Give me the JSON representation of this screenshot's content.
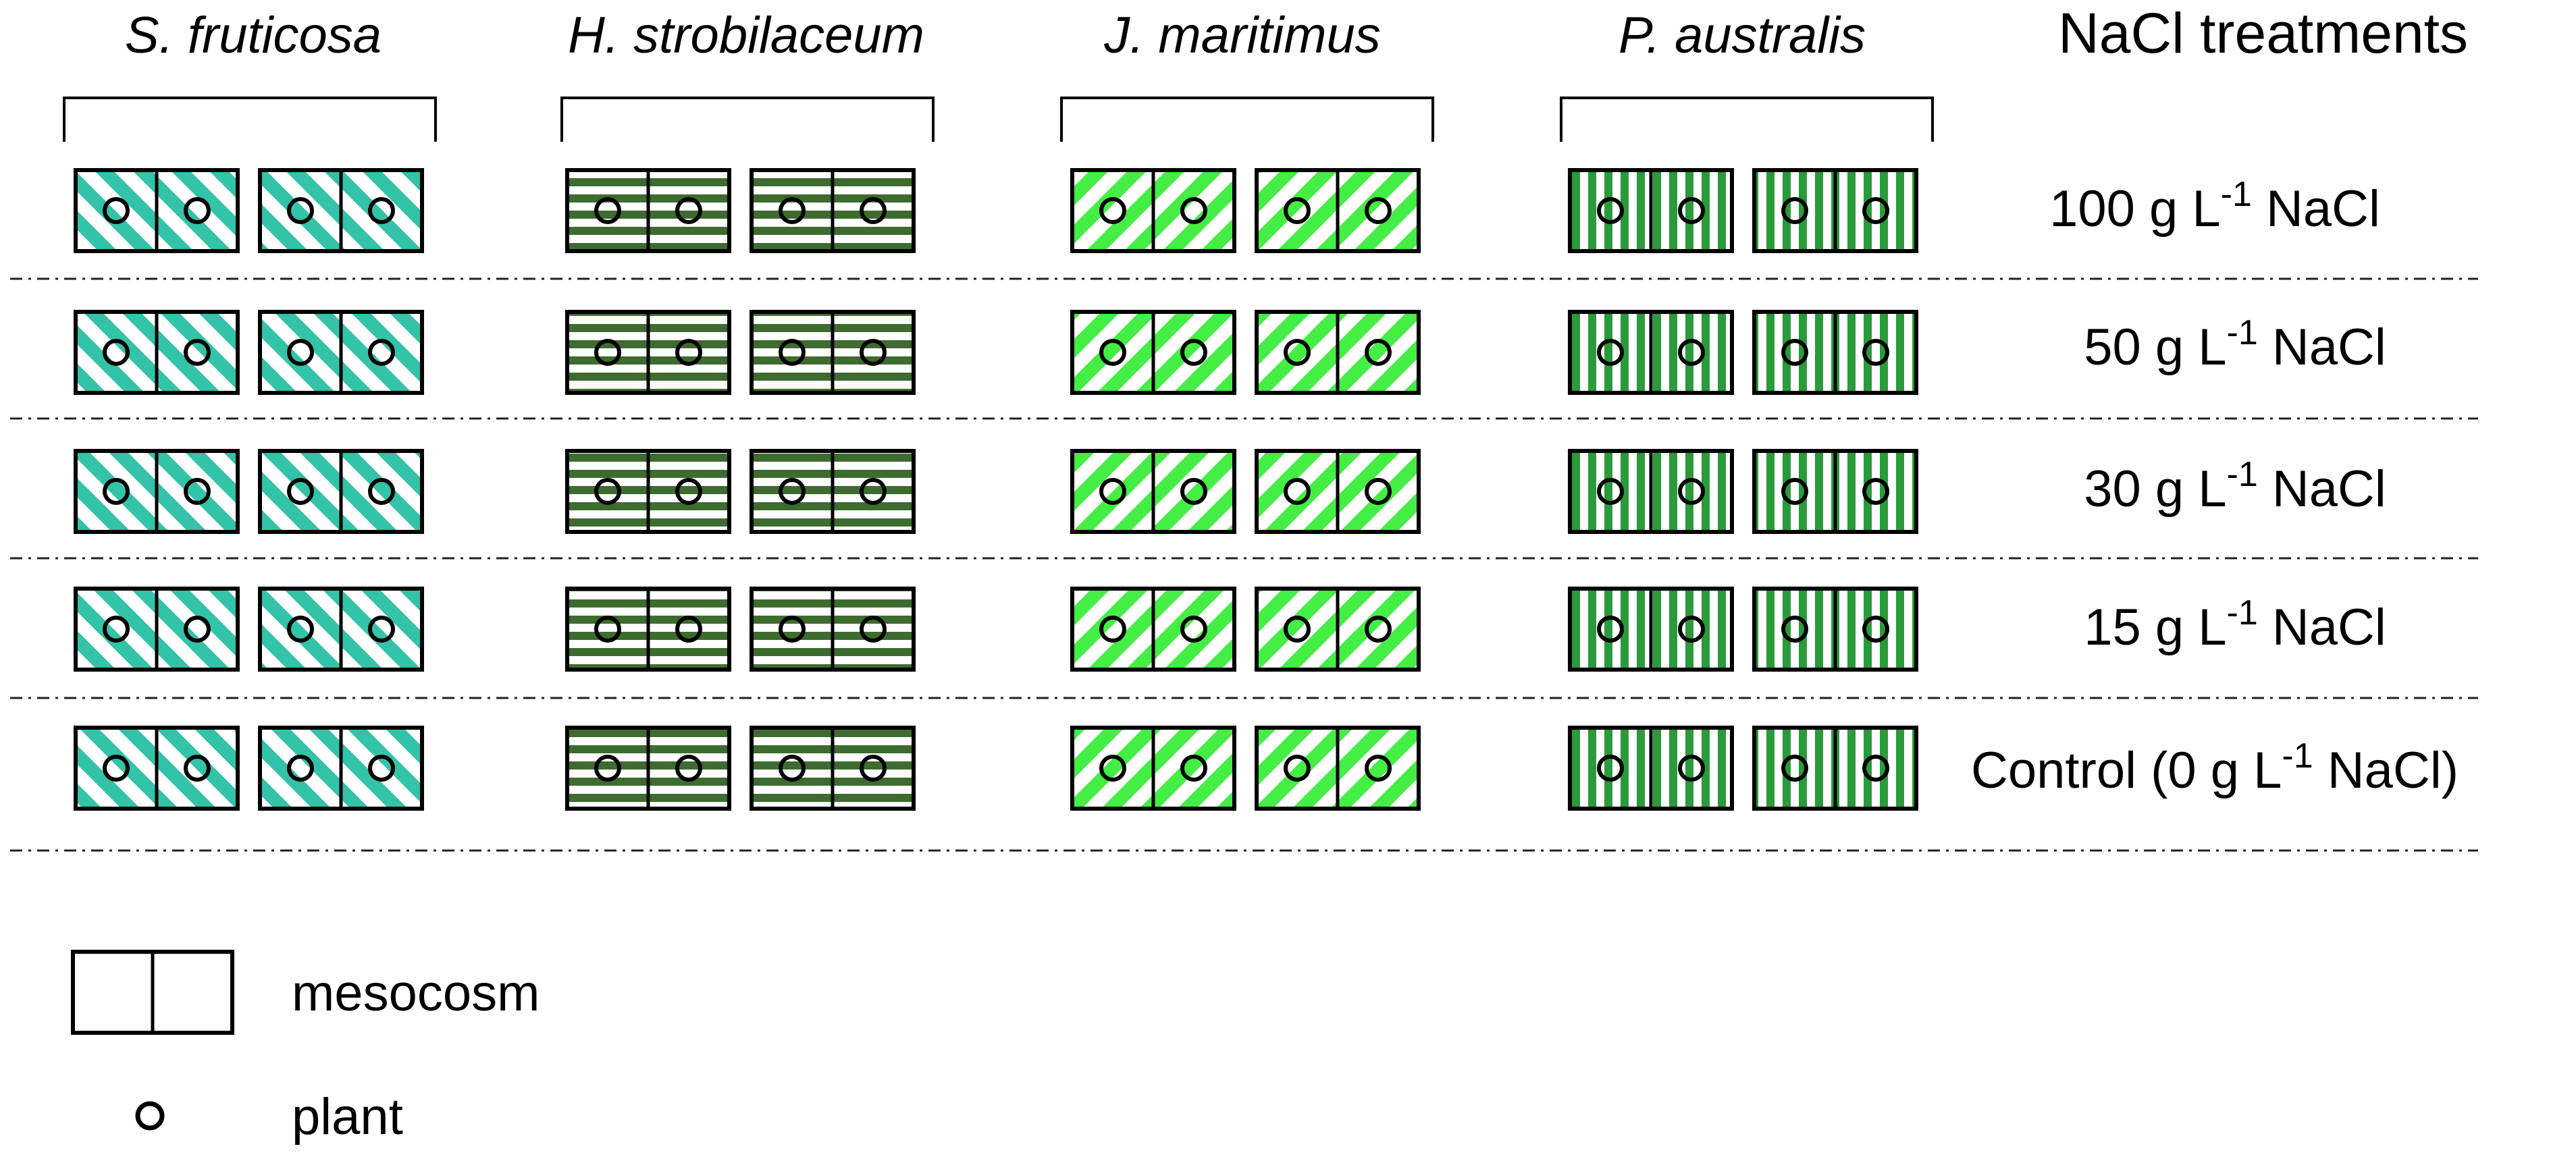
{
  "header": {
    "treatments_title": "NaCl treatments"
  },
  "species": [
    {
      "name": "S. fruticosa",
      "pattern": "diag-left",
      "color": "#33c3a8"
    },
    {
      "name": "H. strobilaceum",
      "pattern": "horizontal",
      "color": "#3e6b2f"
    },
    {
      "name": "J. maritimus",
      "pattern": "diag-right",
      "color": "#44ee44"
    },
    {
      "name": "P. australis",
      "pattern": "vertical",
      "color": "#2b9a3a"
    }
  ],
  "treatments": [
    {
      "pre": "100 g L",
      "sup": "-1",
      "post": " NaCl"
    },
    {
      "pre": "50 g L",
      "sup": "-1",
      "post": " NaCl"
    },
    {
      "pre": "30 g L",
      "sup": "-1",
      "post": " NaCl"
    },
    {
      "pre": "15 g L",
      "sup": "-1",
      "post": " NaCl"
    },
    {
      "pre": "Control (0 g L",
      "sup": "-1",
      "post": " NaCl)"
    }
  ],
  "legend": {
    "mesocosm_label": "mesocosm",
    "plant_label": "plant"
  }
}
